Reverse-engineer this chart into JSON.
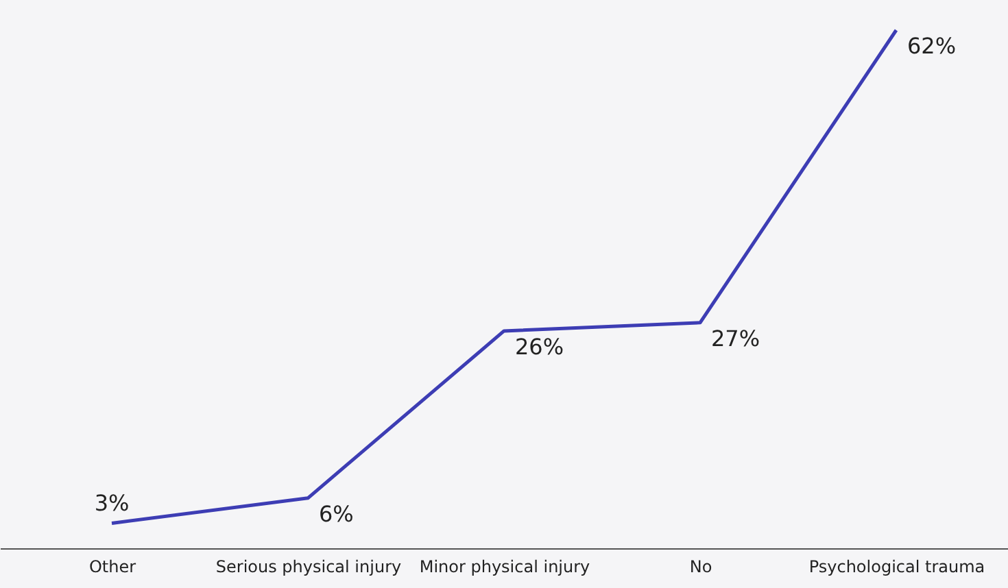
{
  "chart_data": {
    "type": "line",
    "categories": [
      "Other",
      "Serious physical injury",
      "Minor physical injury",
      "No",
      "Psychological trauma"
    ],
    "series": [
      {
        "color": "#3d3db4",
        "values": [
          3,
          6,
          26,
          27,
          62
        ],
        "value_labels": [
          "3%",
          "6%",
          "26%",
          "27%",
          "62%"
        ]
      }
    ],
    "grid": false,
    "marker": "none",
    "tick_labels": "x"
  }
}
